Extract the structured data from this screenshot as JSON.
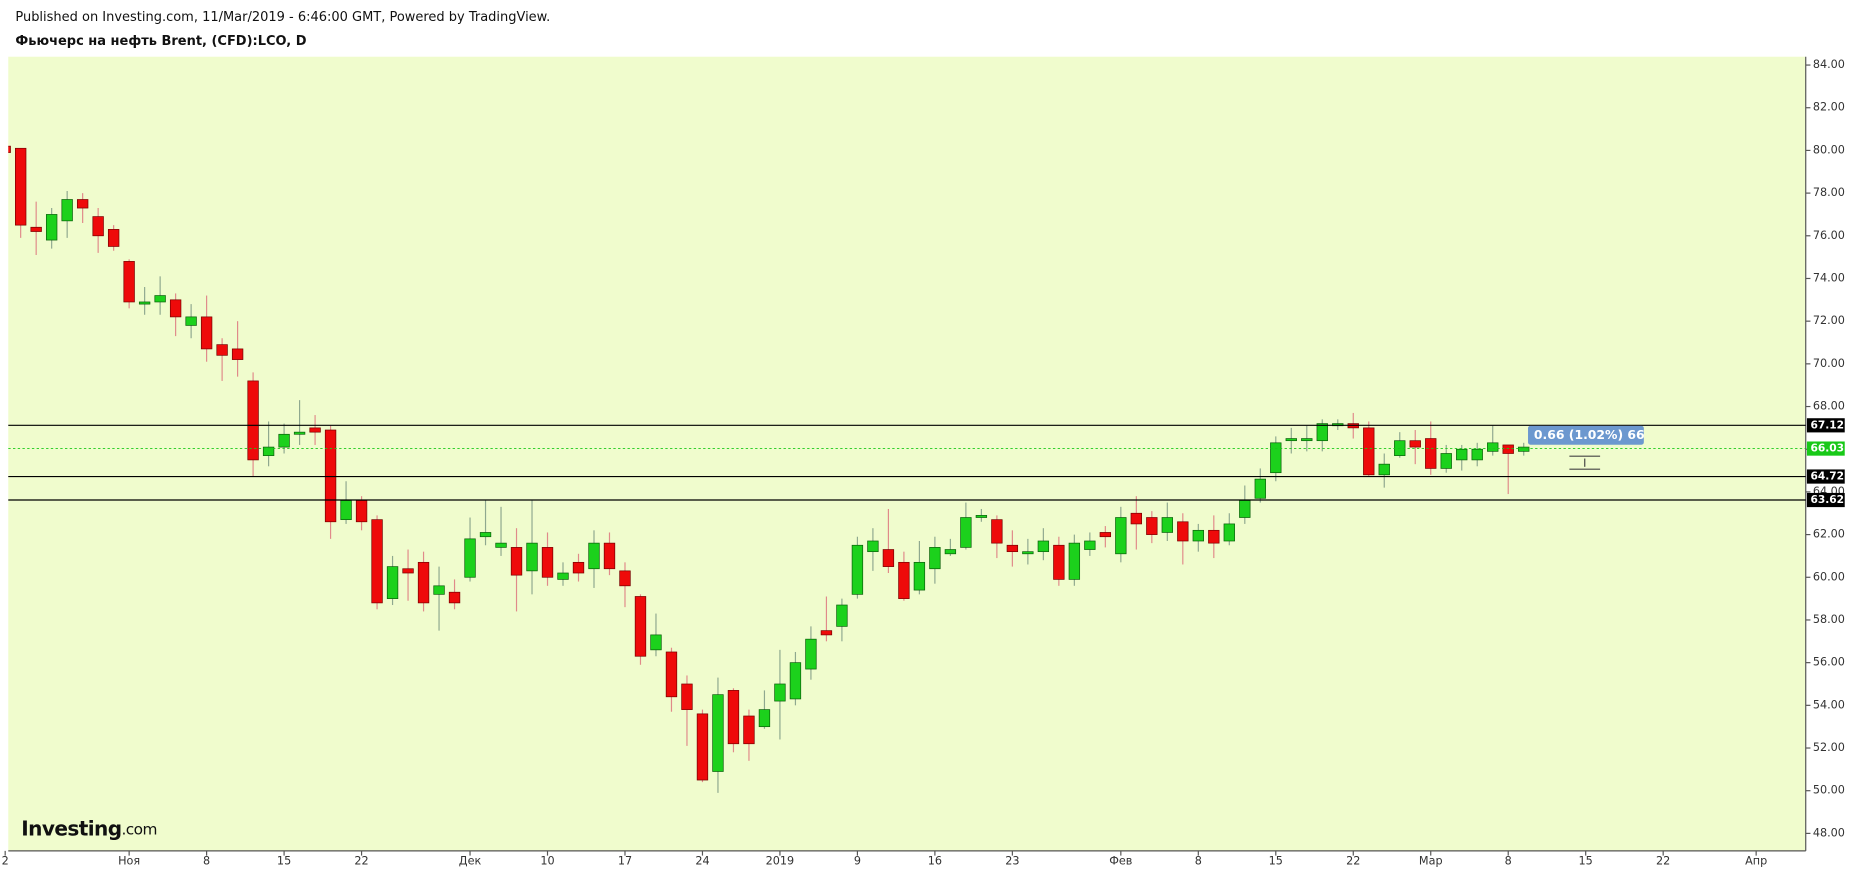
{
  "chart_data": {
    "type": "candlestick",
    "subtitle": "Published on Investing.com, 11/Mar/2019 - 6:46:00 GMT, Powered by TradingView.",
    "title": "Фьючерс на нефть Brent, (CFD):LCO, D",
    "logo": {
      "brand": "Investing",
      "suffix": ".com"
    },
    "up_color": "#1cd11c",
    "down_color": "#ee0a0a",
    "background": "#f0fccd",
    "open": [
      80.2,
      80.1,
      76.4,
      75.8,
      76.7,
      77.7,
      76.9,
      76.3,
      74.8,
      72.8,
      72.9,
      73.0,
      71.8,
      72.2,
      70.9,
      70.7,
      69.2,
      65.7,
      66.1,
      66.7,
      67.0,
      66.9,
      62.7,
      63.6,
      62.7,
      59.0,
      60.4,
      60.7,
      59.2,
      59.3,
      60.0,
      61.9,
      61.4,
      61.4,
      60.3,
      61.4,
      59.9,
      60.7,
      60.4,
      61.6,
      60.3,
      59.1,
      56.6,
      56.5,
      55.0,
      53.6,
      50.9,
      54.7,
      53.5,
      53.0,
      54.2,
      54.3,
      55.7,
      57.5,
      57.7,
      59.2,
      61.2,
      61.3,
      60.7,
      59.4,
      60.4,
      61.1,
      61.4,
      62.8,
      62.7,
      61.5,
      61.1,
      61.2,
      61.5,
      59.9,
      61.3,
      62.1,
      61.1,
      63.0,
      62.8,
      62.1,
      62.6,
      61.7,
      62.2,
      61.7,
      62.8,
      63.7,
      64.9,
      66.4,
      66.4,
      66.4,
      67.1,
      67.2,
      67.0,
      64.8,
      65.7,
      66.4,
      66.5,
      65.1,
      65.5,
      65.5,
      65.9,
      66.2,
      65.9
    ],
    "high": [
      80.3,
      80.1,
      77.6,
      77.3,
      78.1,
      78.0,
      77.3,
      76.5,
      74.9,
      73.6,
      74.1,
      73.3,
      72.8,
      73.2,
      71.2,
      72.0,
      69.6,
      67.3,
      67.2,
      68.3,
      67.6,
      67.1,
      64.5,
      63.8,
      62.9,
      61.0,
      61.3,
      61.2,
      60.5,
      59.9,
      62.8,
      63.6,
      63.3,
      62.3,
      63.6,
      62.1,
      60.7,
      61.1,
      62.2,
      62.1,
      60.7,
      59.2,
      58.3,
      56.7,
      55.4,
      53.8,
      55.3,
      54.8,
      53.8,
      54.7,
      56.6,
      56.5,
      57.7,
      59.1,
      59.0,
      61.9,
      62.3,
      63.2,
      61.2,
      61.7,
      61.9,
      61.8,
      63.5,
      63.2,
      62.9,
      62.2,
      61.8,
      62.3,
      61.9,
      62.0,
      62.1,
      62.4,
      63.3,
      63.8,
      63.1,
      63.5,
      63.0,
      62.5,
      62.9,
      63.0,
      64.3,
      65.1,
      66.6,
      67.0,
      67.1,
      67.4,
      67.4,
      67.7,
      67.3,
      65.8,
      66.8,
      66.9,
      67.3,
      66.2,
      66.2,
      66.3,
      67.1,
      66.2,
      66.3
    ],
    "low": [
      79.8,
      75.9,
      75.1,
      75.4,
      75.9,
      76.6,
      75.2,
      75.3,
      72.6,
      72.3,
      72.3,
      71.3,
      71.2,
      70.1,
      69.2,
      69.4,
      64.7,
      65.2,
      65.8,
      66.2,
      66.2,
      61.8,
      62.5,
      62.2,
      58.5,
      58.7,
      58.9,
      58.4,
      57.5,
      58.5,
      59.8,
      61.5,
      61.0,
      58.4,
      59.2,
      59.6,
      59.6,
      59.8,
      59.5,
      60.1,
      58.6,
      55.9,
      56.3,
      53.7,
      52.1,
      50.4,
      49.9,
      51.8,
      51.4,
      52.9,
      52.4,
      54.0,
      55.2,
      57.0,
      57.0,
      59.0,
      60.3,
      60.2,
      58.9,
      59.2,
      59.7,
      61.0,
      61.3,
      62.6,
      60.9,
      60.5,
      60.6,
      60.8,
      59.6,
      59.6,
      61.0,
      61.4,
      60.7,
      61.3,
      61.6,
      61.7,
      60.6,
      61.2,
      60.9,
      61.5,
      62.5,
      63.5,
      64.5,
      65.8,
      65.9,
      65.9,
      66.9,
      66.5,
      64.7,
      64.2,
      65.6,
      65.3,
      64.8,
      64.9,
      65.0,
      65.2,
      65.7,
      63.9,
      65.7
    ],
    "close": [
      79.9,
      76.5,
      76.2,
      77.0,
      77.7,
      77.3,
      76.0,
      75.5,
      72.9,
      72.9,
      73.2,
      72.2,
      72.2,
      70.7,
      70.4,
      70.2,
      65.5,
      66.1,
      66.7,
      66.8,
      66.8,
      62.6,
      63.6,
      62.6,
      58.8,
      60.5,
      60.2,
      58.8,
      59.6,
      58.8,
      61.8,
      62.1,
      61.6,
      60.1,
      61.6,
      60.0,
      60.2,
      60.2,
      61.6,
      60.4,
      59.6,
      56.3,
      57.3,
      54.4,
      53.8,
      50.5,
      54.5,
      52.2,
      52.2,
      53.8,
      55.0,
      56.0,
      57.1,
      57.3,
      58.7,
      61.5,
      61.7,
      60.5,
      59.0,
      60.7,
      61.4,
      61.3,
      62.8,
      62.9,
      61.6,
      61.2,
      61.2,
      61.7,
      59.9,
      61.6,
      61.7,
      61.9,
      62.8,
      62.5,
      62.0,
      62.8,
      61.7,
      62.2,
      61.6,
      62.5,
      63.6,
      64.6,
      66.3,
      66.5,
      66.5,
      67.2,
      67.2,
      67.0,
      64.8,
      65.3,
      66.4,
      66.1,
      65.1,
      65.8,
      66.0,
      66.0,
      66.3,
      65.8,
      66.1
    ],
    "levels": [
      {
        "value": 67.12,
        "color": "#000000"
      },
      {
        "value": 66.03,
        "color": "#18c918"
      },
      {
        "value": 64.72,
        "color": "#000000"
      },
      {
        "value": 63.62,
        "color": "#000000"
      }
    ],
    "annotation": "0.66 (1.02%) 66",
    "xlim": [
      0.2,
      116.2
    ],
    "xticks": [
      {
        "value": 0,
        "label": "2"
      },
      {
        "value": 8,
        "label": "Ноя"
      },
      {
        "value": 13,
        "label": "8"
      },
      {
        "value": 18,
        "label": "15"
      },
      {
        "value": 23,
        "label": "22"
      },
      {
        "value": 30,
        "label": "Дек"
      },
      {
        "value": 35,
        "label": "10"
      },
      {
        "value": 40,
        "label": "17"
      },
      {
        "value": 45,
        "label": "24"
      },
      {
        "value": 50,
        "label": "2019"
      },
      {
        "value": 55,
        "label": "9"
      },
      {
        "value": 60,
        "label": "16"
      },
      {
        "value": 65,
        "label": "23"
      },
      {
        "value": 72,
        "label": "Фев"
      },
      {
        "value": 77,
        "label": "8"
      },
      {
        "value": 82,
        "label": "15"
      },
      {
        "value": 87,
        "label": "22"
      },
      {
        "value": 92,
        "label": "Мар"
      },
      {
        "value": 97,
        "label": "8"
      },
      {
        "value": 102,
        "label": "15"
      },
      {
        "value": 107,
        "label": "22"
      },
      {
        "value": 113,
        "label": "Апр"
      }
    ],
    "ylim": [
      47.18,
      84.39
    ],
    "yticks": [
      {
        "value": 48,
        "label": "48.00"
      },
      {
        "value": 50,
        "label": "50.00"
      },
      {
        "value": 52,
        "label": "52.00"
      },
      {
        "value": 54,
        "label": "54.00"
      },
      {
        "value": 56,
        "label": "56.00"
      },
      {
        "value": 58,
        "label": "58.00"
      },
      {
        "value": 60,
        "label": "60.00"
      },
      {
        "value": 62,
        "label": "62.00"
      },
      {
        "value": 64,
        "label": "64.00"
      },
      {
        "value": 66,
        "label": "66.00"
      },
      {
        "value": 68,
        "label": "68.00"
      },
      {
        "value": 70,
        "label": "70.00"
      },
      {
        "value": 72,
        "label": "72.00"
      },
      {
        "value": 74,
        "label": "74.00"
      },
      {
        "value": 76,
        "label": "76.00"
      },
      {
        "value": 78,
        "label": "78.00"
      },
      {
        "value": 80,
        "label": "80.00"
      },
      {
        "value": 82,
        "label": "82.00"
      },
      {
        "value": 84,
        "label": "84.00"
      }
    ]
  }
}
